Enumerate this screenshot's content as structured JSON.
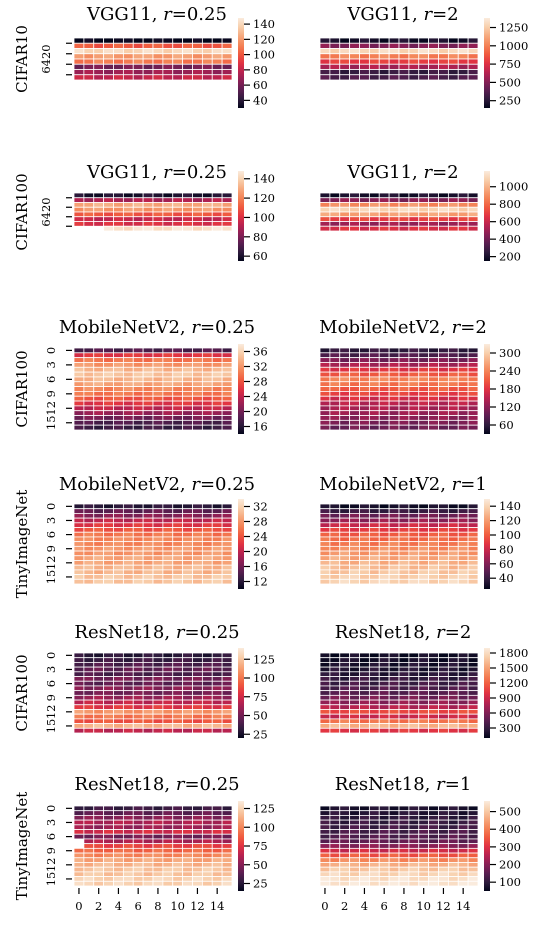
{
  "figure": {
    "colormap": "rocket",
    "colormap_stops": [
      "#03051a",
      "#2f1b3d",
      "#5b1e51",
      "#8a1f55",
      "#b9224f",
      "#e13342",
      "#f05b3f",
      "#f48457",
      "#f6a97e",
      "#f8cfac",
      "#faebdd"
    ],
    "cell_border_color": "#ffffff"
  },
  "chart_data": [
    {
      "type": "heatmap",
      "title_prefix": "VGG11, ",
      "title_var": "r",
      "title_eq": "=0.25",
      "ylabel": "CIFAR10",
      "ytick_labels": [
        "0",
        "2",
        "4",
        "6"
      ],
      "ytick_group_label": "6420",
      "xtick_labels": [],
      "nrows": 8,
      "ncols": 16,
      "vmin": 30,
      "vmax": 148,
      "colorbar_ticks": [
        40,
        60,
        80,
        100,
        120,
        140
      ],
      "row_values": [
        30,
        100,
        140,
        120,
        110,
        60,
        70,
        80
      ],
      "masked_cells": []
    },
    {
      "type": "heatmap",
      "title_prefix": "VGG11, ",
      "title_var": "r",
      "title_eq": "=2",
      "ylabel": "",
      "ytick_labels": [],
      "xtick_labels": [],
      "nrows": 8,
      "ncols": 16,
      "vmin": 150,
      "vmax": 1380,
      "colorbar_ticks": [
        250,
        500,
        750,
        1000,
        1250
      ],
      "row_values": [
        200,
        500,
        1300,
        1000,
        800,
        600,
        300,
        350
      ],
      "masked_cells": []
    },
    {
      "type": "heatmap",
      "title_prefix": "VGG11, ",
      "title_var": "r",
      "title_eq": "=0.25",
      "ylabel": "CIFAR100",
      "ytick_labels": [
        "0",
        "2",
        "4",
        "6"
      ],
      "ytick_group_label": "6420",
      "xtick_labels": [],
      "nrows": 8,
      "ncols": 16,
      "vmin": 55,
      "vmax": 148,
      "colorbar_ticks": [
        60,
        80,
        100,
        120,
        140
      ],
      "row_values": [
        60,
        90,
        130,
        125,
        110,
        95,
        100,
        145
      ],
      "masked_cells": [
        [
          7,
          0
        ],
        [
          7,
          1
        ],
        [
          7,
          2
        ]
      ]
    },
    {
      "type": "heatmap",
      "title_prefix": "VGG11, ",
      "title_var": "r",
      "title_eq": "=2",
      "ylabel": "",
      "ytick_labels": [],
      "xtick_labels": [],
      "nrows": 8,
      "ncols": 16,
      "vmin": 150,
      "vmax": 1180,
      "colorbar_ticks": [
        200,
        400,
        600,
        800,
        1000
      ],
      "row_values": [
        200,
        450,
        900,
        1100,
        950,
        700,
        500,
        650
      ],
      "masked_cells": []
    },
    {
      "type": "heatmap",
      "title_prefix": "MobileNetV2, ",
      "title_var": "r",
      "title_eq": "=0.25",
      "ylabel": "CIFAR100",
      "ytick_labels": [
        "0",
        "3",
        "6",
        "9",
        "12",
        "15"
      ],
      "xtick_labels": [],
      "nrows": 17,
      "ncols": 16,
      "vmin": 14,
      "vmax": 38,
      "colorbar_ticks": [
        16,
        20,
        24,
        28,
        32,
        36
      ],
      "row_values": [
        18,
        26,
        30,
        32,
        34,
        35,
        34,
        33,
        31,
        30,
        28,
        26,
        24,
        22,
        20,
        18,
        17
      ],
      "masked_cells": []
    },
    {
      "type": "heatmap",
      "title_prefix": "MobileNetV2, ",
      "title_var": "r",
      "title_eq": "=2",
      "ylabel": "",
      "ytick_labels": [],
      "xtick_labels": [],
      "nrows": 17,
      "ncols": 16,
      "vmin": 30,
      "vmax": 330,
      "colorbar_ticks": [
        60,
        120,
        180,
        240,
        300
      ],
      "row_values": [
        60,
        80,
        110,
        140,
        180,
        210,
        240,
        230,
        210,
        190,
        170,
        150,
        140,
        130,
        120,
        110,
        100
      ],
      "masked_cells": []
    },
    {
      "type": "heatmap",
      "title_prefix": "MobileNetV2, ",
      "title_var": "r",
      "title_eq": "=0.25",
      "ylabel": "TinyImageNet",
      "ytick_labels": [
        "0",
        "3",
        "6",
        "9",
        "12",
        "15"
      ],
      "xtick_labels": [],
      "nrows": 17,
      "ncols": 16,
      "vmin": 10,
      "vmax": 34,
      "colorbar_ticks": [
        12,
        16,
        20,
        24,
        28,
        32
      ],
      "row_values": [
        12,
        15,
        17,
        20,
        22,
        24,
        26,
        27,
        27,
        28,
        28,
        29,
        29,
        30,
        30,
        31,
        31
      ],
      "masked_cells": []
    },
    {
      "type": "heatmap",
      "title_prefix": "MobileNetV2, ",
      "title_var": "r",
      "title_eq": "=1",
      "ylabel": "",
      "ytick_labels": [],
      "xtick_labels": [],
      "nrows": 17,
      "ncols": 16,
      "vmin": 25,
      "vmax": 150,
      "colorbar_ticks": [
        40,
        60,
        80,
        100,
        120,
        140
      ],
      "row_values": [
        30,
        40,
        55,
        65,
        80,
        90,
        100,
        105,
        110,
        115,
        120,
        125,
        128,
        132,
        135,
        138,
        140
      ],
      "masked_cells": []
    },
    {
      "type": "heatmap",
      "title_prefix": "ResNet18, ",
      "title_var": "r",
      "title_eq": "=0.25",
      "ylabel": "CIFAR100",
      "ytick_labels": [
        "0",
        "3",
        "6",
        "9",
        "12",
        "15"
      ],
      "xtick_labels": [],
      "nrows": 17,
      "ncols": 16,
      "vmin": 20,
      "vmax": 140,
      "colorbar_ticks": [
        25,
        50,
        75,
        100,
        125
      ],
      "row_values": [
        30,
        35,
        40,
        45,
        40,
        50,
        45,
        55,
        50,
        60,
        70,
        80,
        110,
        100,
        90,
        120,
        70
      ],
      "masked_cells": []
    },
    {
      "type": "heatmap",
      "title_prefix": "ResNet18, ",
      "title_var": "r",
      "title_eq": "=2",
      "ylabel": "",
      "ytick_labels": [],
      "xtick_labels": [],
      "nrows": 17,
      "ncols": 16,
      "vmin": 100,
      "vmax": 1900,
      "colorbar_ticks": [
        300,
        600,
        900,
        1200,
        1500,
        1800
      ],
      "row_values": [
        150,
        180,
        200,
        220,
        250,
        300,
        350,
        400,
        450,
        550,
        650,
        800,
        1100,
        900,
        1300,
        1600,
        1000
      ],
      "masked_cells": []
    },
    {
      "type": "heatmap",
      "title_prefix": "ResNet18, ",
      "title_var": "r",
      "title_eq": "=0.25",
      "ylabel": "TinyImageNet",
      "ytick_labels": [
        "0",
        "3",
        "6",
        "9",
        "12",
        "15"
      ],
      "xtick_labels": [
        "0",
        "2",
        "4",
        "6",
        "8",
        "10",
        "12",
        "14"
      ],
      "nrows": 17,
      "ncols": 16,
      "vmin": 15,
      "vmax": 135,
      "colorbar_ticks": [
        25,
        50,
        75,
        100,
        125
      ],
      "row_values": [
        30,
        40,
        50,
        60,
        55,
        70,
        45,
        60,
        80,
        90,
        100,
        110,
        115,
        120,
        120,
        125,
        125
      ],
      "masked_cells": [
        [
          7,
          0
        ],
        [
          8,
          0
        ]
      ]
    },
    {
      "type": "heatmap",
      "title_prefix": "ResNet18, ",
      "title_var": "r",
      "title_eq": "=1",
      "ylabel": "",
      "ytick_labels": [],
      "xtick_labels": [
        "0",
        "2",
        "4",
        "6",
        "8",
        "10",
        "12",
        "14"
      ],
      "nrows": 17,
      "ncols": 16,
      "vmin": 50,
      "vmax": 560,
      "colorbar_ticks": [
        100,
        200,
        300,
        400,
        500
      ],
      "row_values": [
        80,
        90,
        100,
        110,
        120,
        130,
        140,
        160,
        200,
        280,
        350,
        420,
        470,
        500,
        520,
        540,
        550
      ],
      "masked_cells": []
    }
  ]
}
